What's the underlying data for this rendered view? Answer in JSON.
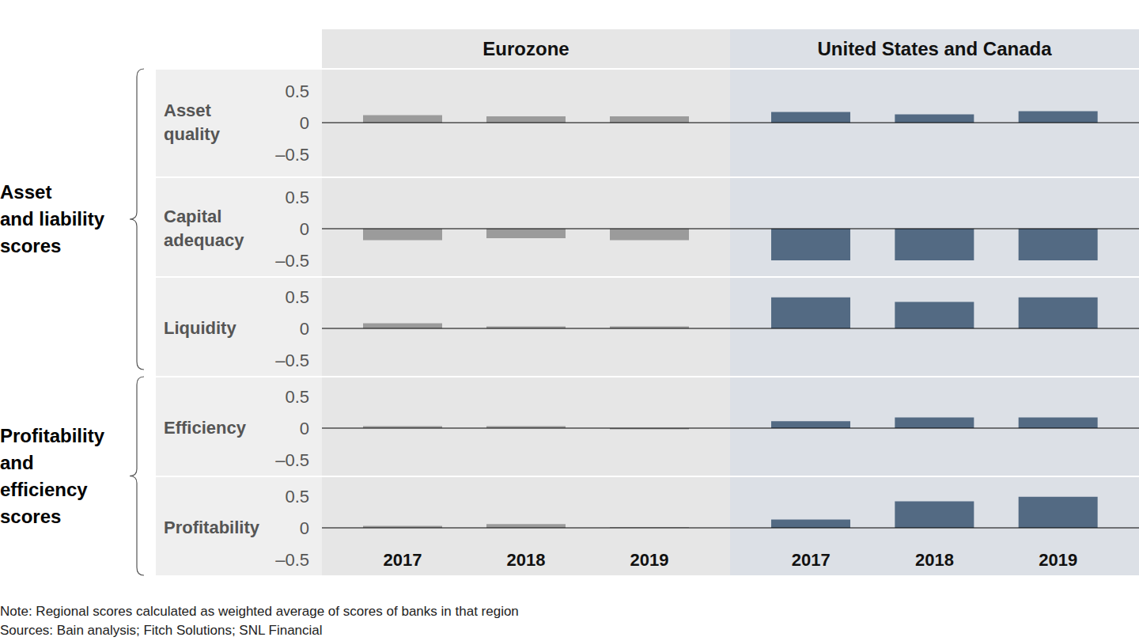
{
  "chart_data": {
    "type": "bar",
    "categories": [
      "2017",
      "2018",
      "2019"
    ],
    "ylim": [
      -0.5,
      0.5
    ],
    "yticks": [
      0.5,
      0,
      {
        "value": -0.5,
        "label": "–0.5"
      }
    ],
    "regions": [
      {
        "name": "Eurozone",
        "color": "#9b9b9b"
      },
      {
        "name": "United States and Canada",
        "color": "#536a83"
      }
    ],
    "groups": [
      {
        "label_lines": [
          "Asset",
          "and liability",
          "scores"
        ],
        "metrics": [
          {
            "label_lines": [
              "Asset",
              "quality"
            ],
            "values": [
              [
                0.12,
                0.1,
                0.1
              ],
              [
                0.17,
                0.13,
                0.18
              ]
            ]
          },
          {
            "label_lines": [
              "Capital",
              "adequacy"
            ],
            "values": [
              [
                -0.18,
                -0.15,
                -0.18
              ],
              [
                -0.54,
                -0.5,
                -0.54
              ]
            ]
          },
          {
            "label_lines": [
              "Liquidity"
            ],
            "values": [
              [
                0.08,
                0.03,
                0.03
              ],
              [
                0.49,
                0.42,
                0.49
              ]
            ]
          }
        ]
      },
      {
        "label_lines": [
          "Profitability",
          "and",
          "efficiency",
          "scores"
        ],
        "metrics": [
          {
            "label_lines": [
              "Efficiency"
            ],
            "values": [
              [
                0.03,
                0.03,
                -0.02
              ],
              [
                0.11,
                0.17,
                0.17
              ]
            ]
          },
          {
            "label_lines": [
              "Profitability"
            ],
            "values": [
              [
                0.03,
                0.06,
                0.01
              ],
              [
                0.13,
                0.42,
                0.49
              ]
            ]
          }
        ]
      }
    ],
    "note": "Note: Regional scores calculated as weighted average of scores of banks in that region",
    "sources": "Sources: Bain analysis; Fitch Solutions; SNL Financial"
  }
}
